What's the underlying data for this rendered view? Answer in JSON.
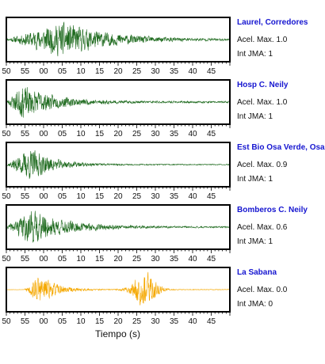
{
  "chart_data": [
    {
      "type": "line",
      "title": "Laurel, Corredores",
      "accel_max_text": "Acel. Max. 1.0",
      "jma_text": "Int JMA: 1",
      "color": "#1f6b1f",
      "tick_labels": [
        "50",
        "55",
        "00",
        "05",
        "10",
        "15",
        "20",
        "25",
        "30",
        "35",
        "40",
        "45"
      ],
      "envelope": {
        "onset": 0.0,
        "peak": 0.25,
        "decay": 0.2,
        "noise": 0.04,
        "seed": 11
      }
    },
    {
      "type": "line",
      "title": "Hosp C. Neily",
      "accel_max_text": "Acel. Max. 1.0",
      "jma_text": "Int JMA: 1",
      "color": "#1f6b1f",
      "tick_labels": [
        "50",
        "55",
        "00",
        "05",
        "10",
        "15",
        "20",
        "25",
        "30",
        "35",
        "40",
        "45"
      ],
      "envelope": {
        "onset": 0.0,
        "peak": 0.06,
        "decay": 0.14,
        "noise": 0.05,
        "seed": 23
      }
    },
    {
      "type": "line",
      "title": "Est Bio Osa Verde, Osa",
      "accel_max_text": "Acel. Max. 0.9",
      "jma_text": "Int JMA: 1",
      "color": "#1f6b1f",
      "tick_labels": [
        "50",
        "55",
        "00",
        "05",
        "10",
        "15",
        "20",
        "25",
        "30",
        "35",
        "40",
        "45"
      ],
      "envelope": {
        "onset": 0.0,
        "peak": 0.1,
        "decay": 0.1,
        "noise": 0.03,
        "seed": 37
      }
    },
    {
      "type": "line",
      "title": "Bomberos C. Neily",
      "accel_max_text": "Acel. Max. 0.6",
      "jma_text": "Int JMA: 1",
      "color": "#1f6b1f",
      "tick_labels": [
        "50",
        "55",
        "00",
        "05",
        "10",
        "15",
        "20",
        "25",
        "30",
        "35",
        "40",
        "45"
      ],
      "envelope": {
        "onset": 0.0,
        "peak": 0.1,
        "decay": 0.16,
        "noise": 0.04,
        "seed": 41
      }
    },
    {
      "type": "line",
      "title": "La Sabana",
      "accel_max_text": "Acel. Max. 0.0",
      "jma_text": "Int JMA: 0",
      "color": "#f5a800",
      "tick_labels": [
        "50",
        "55",
        "00",
        "05",
        "10",
        "15",
        "20",
        "25",
        "30",
        "35",
        "40",
        "45"
      ],
      "envelope": {
        "onset": 0.08,
        "peak": 0.14,
        "decay": 0.07,
        "noise": 0.02,
        "second_peak": 0.62,
        "seed": 53
      }
    }
  ],
  "xlabel": "Tiempo (s)",
  "title_color": "#1515d0"
}
